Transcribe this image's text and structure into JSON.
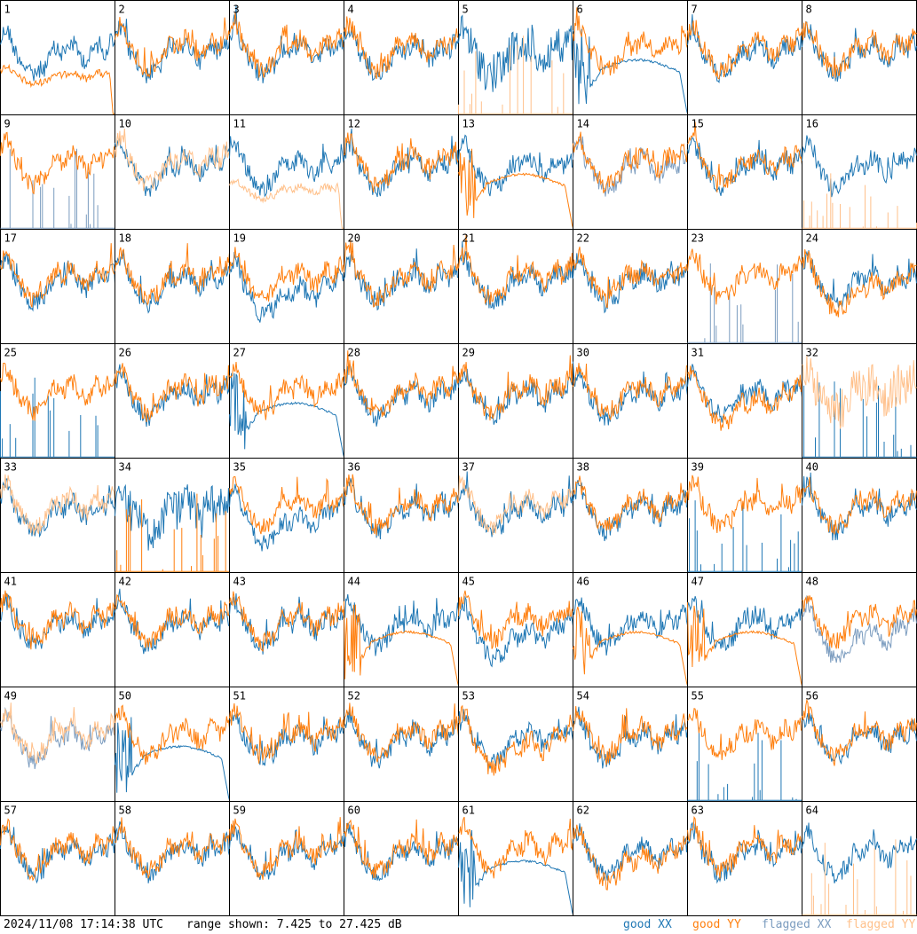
{
  "footer": {
    "timestamp": "2024/11/08 17:14:38 UTC",
    "range_text": "range shown: 7.425 to 27.425 dB"
  },
  "legend": [
    {
      "key": "good_xx",
      "label": "good XX",
      "color": "#1f77b4"
    },
    {
      "key": "good_yy",
      "label": "good YY",
      "color": "#ff7f0e"
    },
    {
      "key": "flagged_xx",
      "label": "flagged XX",
      "color": "#7b9cbf"
    },
    {
      "key": "flagged_yy",
      "label": "flagged YY",
      "color": "#ffc08a"
    }
  ],
  "chart_data": {
    "type": "line",
    "ylim": [
      7.425,
      27.425
    ],
    "yunit": "dB",
    "grid": "8x8",
    "panels": [
      {
        "id": 1,
        "xx": "normal",
        "yy": "low-dip"
      },
      {
        "id": 2,
        "xx": "normal",
        "yy": "normal"
      },
      {
        "id": 3,
        "xx": "normal",
        "yy": "normal"
      },
      {
        "id": 4,
        "xx": "normal",
        "yy": "normal"
      },
      {
        "id": 5,
        "xx": "noisy",
        "yy": "spikes",
        "yy_flagged": true
      },
      {
        "id": 6,
        "xx": "dropout",
        "yy": "normal"
      },
      {
        "id": 7,
        "xx": "normal",
        "yy": "normal"
      },
      {
        "id": 8,
        "xx": "normal",
        "yy": "normal"
      },
      {
        "id": 9,
        "xx": "spikes",
        "yy": "normal",
        "xx_flagged": true
      },
      {
        "id": 10,
        "xx": "normal",
        "yy": "normal",
        "yy_flagged": true
      },
      {
        "id": 11,
        "xx": "normal",
        "yy": "low-dip",
        "yy_flagged": true
      },
      {
        "id": 12,
        "xx": "normal",
        "yy": "normal"
      },
      {
        "id": 13,
        "xx": "normal",
        "yy": "dropout"
      },
      {
        "id": 14,
        "xx": "normal",
        "yy": "normal",
        "xx_flagged": true
      },
      {
        "id": 15,
        "xx": "normal",
        "yy": "normal"
      },
      {
        "id": 16,
        "xx": "normal",
        "yy": "spikes",
        "yy_flagged": true
      },
      {
        "id": 17,
        "xx": "normal",
        "yy": "normal"
      },
      {
        "id": 18,
        "xx": "normal",
        "yy": "normal"
      },
      {
        "id": 19,
        "xx": "deep",
        "yy": "normal"
      },
      {
        "id": 20,
        "xx": "normal",
        "yy": "normal"
      },
      {
        "id": 21,
        "xx": "normal",
        "yy": "normal"
      },
      {
        "id": 22,
        "xx": "normal",
        "yy": "normal"
      },
      {
        "id": 23,
        "xx": "spikes",
        "yy": "normal",
        "xx_flagged": true
      },
      {
        "id": 24,
        "xx": "normal",
        "yy": "deep"
      },
      {
        "id": 25,
        "xx": "spikes",
        "yy": "normal"
      },
      {
        "id": 26,
        "xx": "normal",
        "yy": "normal"
      },
      {
        "id": 27,
        "xx": "dropout",
        "yy": "normal"
      },
      {
        "id": 28,
        "xx": "normal",
        "yy": "normal"
      },
      {
        "id": 29,
        "xx": "normal",
        "yy": "normal"
      },
      {
        "id": 30,
        "xx": "normal",
        "yy": "normal"
      },
      {
        "id": 31,
        "xx": "normal",
        "yy": "deep"
      },
      {
        "id": 32,
        "xx": "spikes",
        "yy": "noisy",
        "yy_flagged": true
      },
      {
        "id": 33,
        "xx": "normal",
        "yy": "normal",
        "yy_flagged": true
      },
      {
        "id": 34,
        "xx": "noisy",
        "yy": "spikes"
      },
      {
        "id": 35,
        "xx": "deep",
        "yy": "normal"
      },
      {
        "id": 36,
        "xx": "normal",
        "yy": "normal"
      },
      {
        "id": 37,
        "xx": "normal",
        "yy": "normal",
        "yy_flagged": true
      },
      {
        "id": 38,
        "xx": "normal",
        "yy": "normal"
      },
      {
        "id": 39,
        "xx": "spikes",
        "yy": "normal"
      },
      {
        "id": 40,
        "xx": "normal",
        "yy": "normal"
      },
      {
        "id": 41,
        "xx": "normal",
        "yy": "normal"
      },
      {
        "id": 42,
        "xx": "normal",
        "yy": "normal"
      },
      {
        "id": 43,
        "xx": "normal",
        "yy": "normal"
      },
      {
        "id": 44,
        "xx": "normal",
        "yy": "dropout"
      },
      {
        "id": 45,
        "xx": "deep",
        "yy": "normal"
      },
      {
        "id": 46,
        "xx": "normal",
        "yy": "dropout"
      },
      {
        "id": 47,
        "xx": "normal",
        "yy": "dropout"
      },
      {
        "id": 48,
        "xx": "deep",
        "yy": "normal",
        "xx_flagged": true
      },
      {
        "id": 49,
        "xx": "normal",
        "yy": "normal",
        "xx_flagged": true,
        "yy_flagged": true
      },
      {
        "id": 50,
        "xx": "dropout",
        "yy": "normal"
      },
      {
        "id": 51,
        "xx": "normal",
        "yy": "normal"
      },
      {
        "id": 52,
        "xx": "normal",
        "yy": "normal"
      },
      {
        "id": 53,
        "xx": "normal",
        "yy": "deep"
      },
      {
        "id": 54,
        "xx": "normal",
        "yy": "normal"
      },
      {
        "id": 55,
        "xx": "spikes",
        "yy": "normal"
      },
      {
        "id": 56,
        "xx": "normal",
        "yy": "normal"
      },
      {
        "id": 57,
        "xx": "normal",
        "yy": "normal"
      },
      {
        "id": 58,
        "xx": "normal",
        "yy": "normal"
      },
      {
        "id": 59,
        "xx": "normal",
        "yy": "normal"
      },
      {
        "id": 60,
        "xx": "normal",
        "yy": "normal"
      },
      {
        "id": 61,
        "xx": "dropout",
        "yy": "normal"
      },
      {
        "id": 62,
        "xx": "normal",
        "yy": "deep"
      },
      {
        "id": 63,
        "xx": "normal",
        "yy": "normal"
      },
      {
        "id": 64,
        "xx": "normal",
        "yy": "spikes",
        "yy_flagged": true
      }
    ]
  }
}
